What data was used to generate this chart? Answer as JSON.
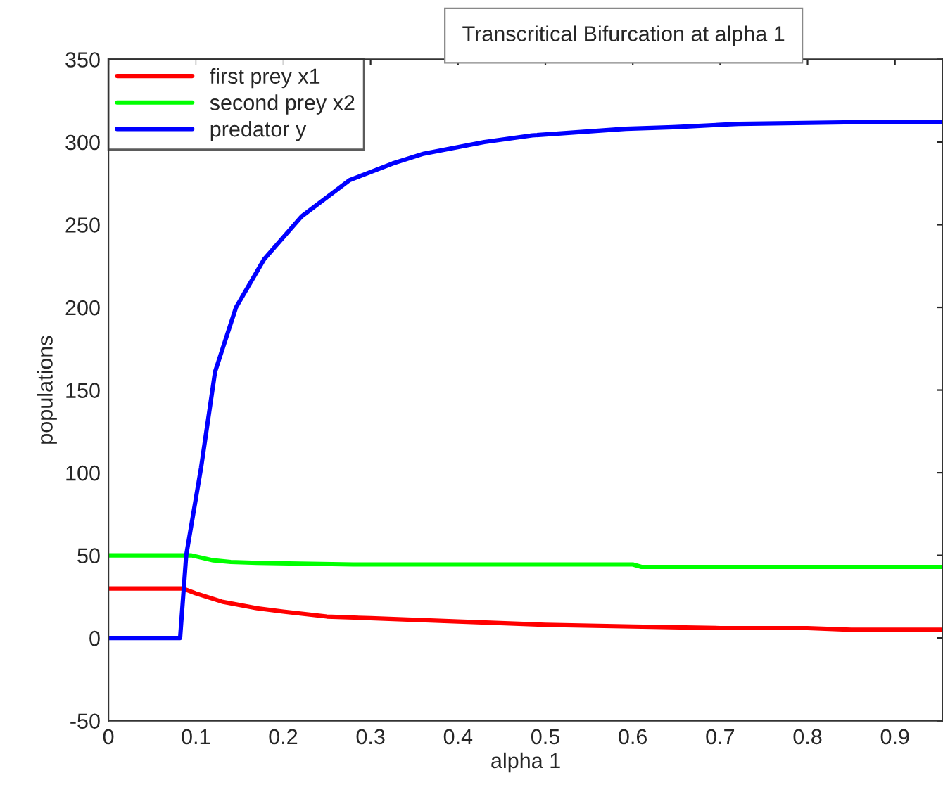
{
  "chart_data": {
    "type": "line",
    "title": "Transcritical Bifurcation at alpha 1",
    "xlabel": "alpha 1",
    "ylabel": "populations",
    "xlim": [
      0,
      0.955
    ],
    "xticks": [
      0,
      0.1,
      0.2,
      0.3,
      0.4,
      0.5,
      0.6,
      0.7,
      0.8,
      0.9
    ],
    "ylim": [
      -50,
      350
    ],
    "yticks": [
      -50,
      0,
      50,
      100,
      150,
      200,
      250,
      300,
      350
    ],
    "grid": false,
    "legend": "top left",
    "line_style": "solid",
    "marker": "none",
    "series": [
      {
        "name": "first prey x1",
        "color": "#ff0000",
        "x": [
          0,
          0.085,
          0.1,
          0.13,
          0.17,
          0.2,
          0.25,
          0.3,
          0.4,
          0.5,
          0.6,
          0.7,
          0.8,
          0.85,
          0.955
        ],
        "values": [
          30,
          30,
          27,
          22,
          18,
          16,
          13,
          12,
          10,
          8,
          7,
          6,
          6,
          5,
          5
        ]
      },
      {
        "name": "second prey x2",
        "color": "#00ff00",
        "x": [
          0,
          0.095,
          0.12,
          0.14,
          0.17,
          0.28,
          0.6,
          0.61,
          0.955
        ],
        "values": [
          50,
          50,
          47,
          46,
          45.5,
          44.5,
          44.5,
          43,
          43
        ]
      },
      {
        "name": "predator y",
        "color": "#0000ff",
        "x": [
          0,
          0.082,
          0.089,
          0.106,
          0.122,
          0.146,
          0.178,
          0.221,
          0.276,
          0.325,
          0.361,
          0.43,
          0.485,
          0.592,
          0.646,
          0.721,
          0.856,
          0.955
        ],
        "values": [
          0,
          0,
          50,
          103,
          161,
          200,
          229,
          255,
          277,
          287,
          293,
          300,
          304,
          308,
          309,
          311,
          312,
          312
        ]
      }
    ]
  }
}
